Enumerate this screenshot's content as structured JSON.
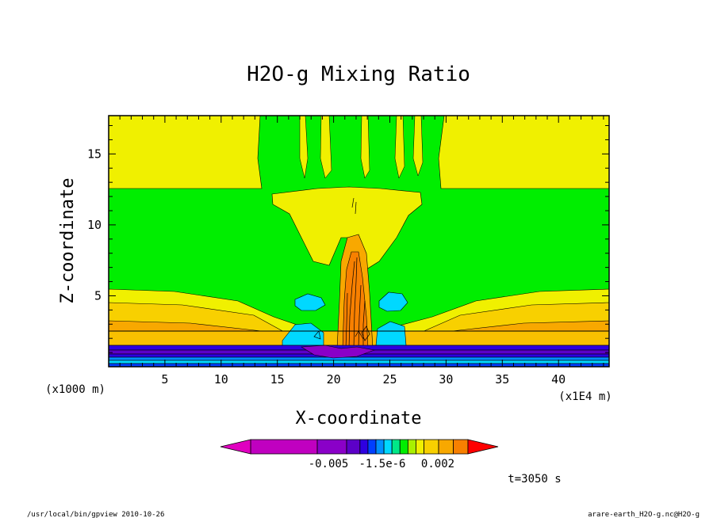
{
  "chart_data": {
    "type": "heatmap",
    "title": "H2O-g Mixing Ratio",
    "xlabel": "X-coordinate",
    "ylabel": "Z-coordinate",
    "x_unit_left": "(x1000 m)",
    "x_unit_right": "(x1E4 m)",
    "xlim": [
      0,
      44.5
    ],
    "ylim": [
      0,
      17.7
    ],
    "x_ticks": [
      "5",
      "10",
      "15",
      "20",
      "25",
      "30",
      "35",
      "40"
    ],
    "y_ticks": [
      "5",
      "10",
      "15"
    ],
    "colorbar": {
      "labels": [
        "-0.005",
        "-1.5e-6",
        "0.002"
      ],
      "colors": [
        "#e000c0",
        "#c000c0",
        "#8a00c8",
        "#5c00c8",
        "#2e00e0",
        "#0040ff",
        "#0090ff",
        "#00d8ff",
        "#00e888",
        "#00ee00",
        "#a8f000",
        "#f0f000",
        "#f8d000",
        "#f8a800",
        "#f88000",
        "#ff0000"
      ]
    },
    "time_label": "t=3050 s",
    "footer_left": "/usr/local/bin/gpview  2010-10-26",
    "footer_right": "arare-earth_H2O-g.nc@H2O-g"
  }
}
